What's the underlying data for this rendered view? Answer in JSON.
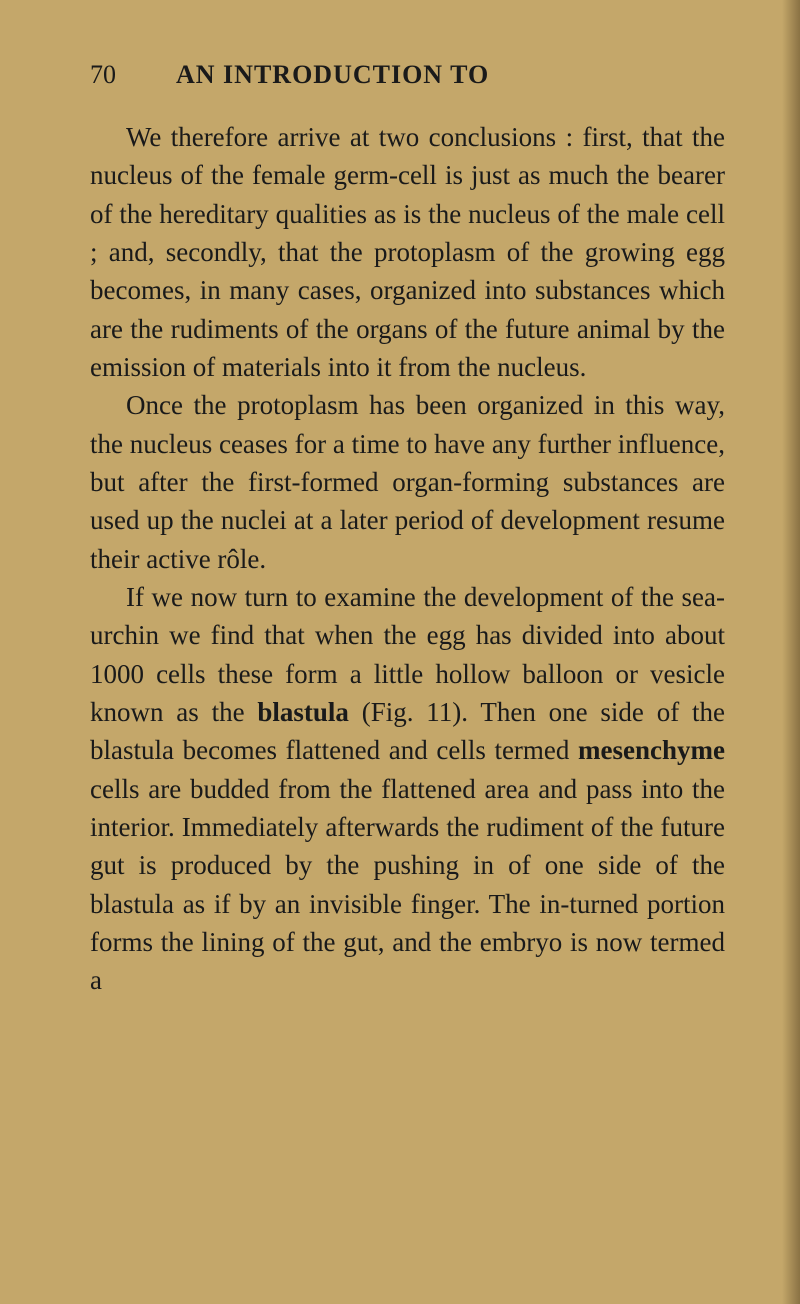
{
  "page": {
    "number": "70",
    "title": "AN INTRODUCTION TO",
    "background_color": "#c4a76a",
    "text_color": "#1a1a1a",
    "font_family": "Georgia, Times New Roman, serif",
    "body_font_size": 27,
    "header_font_size": 26,
    "line_height": 1.42,
    "paragraphs": [
      {
        "segments": [
          {
            "text": "We therefore arrive at two conclusions : first, that the nucleus of the female germ-cell is just as much the bearer of the hereditary qualities as is the nucleus of the male cell ; and, secondly, that the protoplasm of the growing egg becomes, in many cases, organized into substances which are the rudiments of the organs of the future animal by the emission of materials into it from the nucleus.",
            "bold": false
          }
        ]
      },
      {
        "segments": [
          {
            "text": "Once the protoplasm has been organized in this way, the nucleus ceases for a time to have any further influence, but after the first-formed organ-forming substances are used up the nuclei at a later period of development resume their active rôle.",
            "bold": false
          }
        ]
      },
      {
        "segments": [
          {
            "text": "If we now turn to examine the development of the sea-urchin we find that when the egg has divided into about 1000 cells these form a little hollow balloon or vesicle known as the ",
            "bold": false
          },
          {
            "text": "blastula",
            "bold": true
          },
          {
            "text": " (Fig. 11). Then one side of the blastula becomes flattened and cells termed ",
            "bold": false
          },
          {
            "text": "mesenchyme",
            "bold": true
          },
          {
            "text": " cells are budded from the flattened area and pass into the interior. Immediately afterwards the rudiment of the future gut is produced by the pushing in of one side of the blastula as if by an invisible finger. The in-turned portion forms the lining of the gut, and the embryo is now termed a",
            "bold": false
          }
        ]
      }
    ]
  }
}
